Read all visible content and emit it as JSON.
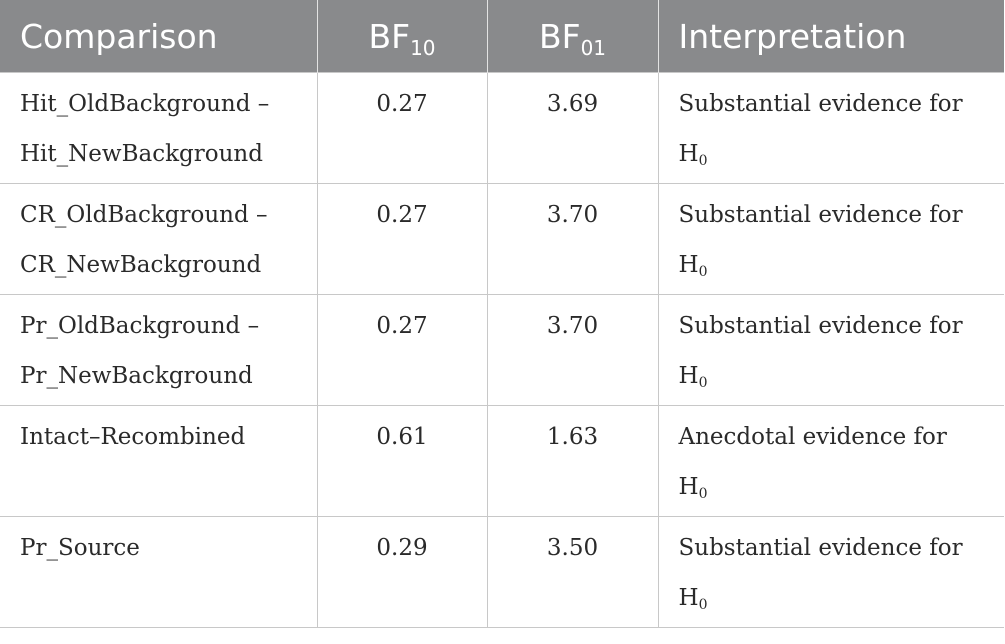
{
  "header": {
    "comparison": "Comparison",
    "bf10_base": "BF",
    "bf10_sub": "10",
    "bf01_base": "BF",
    "bf01_sub": "01",
    "interpretation": "Interpretation"
  },
  "rows": [
    {
      "comparison_line1": "Hit_OldBackground –",
      "comparison_line2": "Hit_NewBackground",
      "bf10": "0.27",
      "bf01": "3.69",
      "interp_line1": "Substantial evidence for",
      "hyp_base": "H",
      "hyp_sub": "0"
    },
    {
      "comparison_line1": "CR_OldBackground –",
      "comparison_line2": "CR_NewBackground",
      "bf10": "0.27",
      "bf01": "3.70",
      "interp_line1": "Substantial evidence for",
      "hyp_base": "H",
      "hyp_sub": "0"
    },
    {
      "comparison_line1": "Pr_OldBackground –",
      "comparison_line2": "Pr_NewBackground",
      "bf10": "0.27",
      "bf01": "3.70",
      "interp_line1": "Substantial evidence for",
      "hyp_base": "H",
      "hyp_sub": "0"
    },
    {
      "comparison_line1": "Intact–Recombined",
      "comparison_line2": "",
      "bf10": "0.61",
      "bf01": "1.63",
      "interp_line1": "Anecdotal evidence for",
      "hyp_base": "H",
      "hyp_sub": "0"
    },
    {
      "comparison_line1": "Pr_Source",
      "comparison_line2": "",
      "bf10": "0.29",
      "bf01": "3.50",
      "interp_line1": "Substantial evidence for",
      "hyp_base": "H",
      "hyp_sub": "0"
    }
  ],
  "colors": {
    "header_bg": "#898a8c",
    "header_text": "#ffffff",
    "body_text": "#2a2a2a",
    "grid": "#c8c8c8"
  }
}
